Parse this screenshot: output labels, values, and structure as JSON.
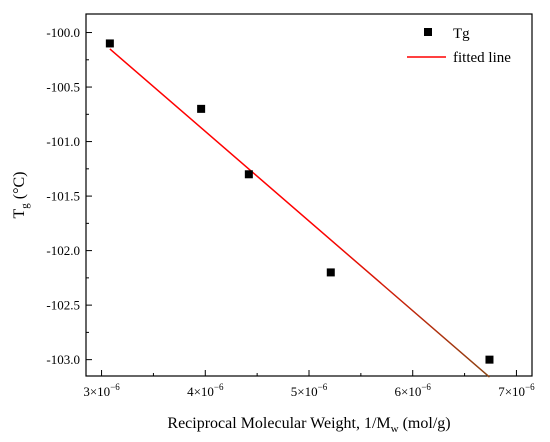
{
  "chart_data": {
    "type": "scatter",
    "xlabel": {
      "main": "Reciprocal Molecular Weight, 1/M",
      "sub": "w",
      "unit": " (mol/g)"
    },
    "ylabel": {
      "main": "T",
      "sub": "g",
      "unit": "  (°C)"
    },
    "xlim": [
      2.85e-06,
      7.15e-06
    ],
    "ylim": [
      -103.15,
      -99.83
    ],
    "x_ticks": [
      {
        "value": 3e-06,
        "mantissa": "3×10",
        "exp": "−6"
      },
      {
        "value": 4e-06,
        "mantissa": "4×10",
        "exp": "−6"
      },
      {
        "value": 5e-06,
        "mantissa": "5×10",
        "exp": "−6"
      },
      {
        "value": 6e-06,
        "mantissa": "6×10",
        "exp": "−6"
      },
      {
        "value": 7e-06,
        "mantissa": "7×10",
        "exp": "−6"
      }
    ],
    "y_ticks": [
      {
        "value": -100.0,
        "label": "-100.0"
      },
      {
        "value": -100.5,
        "label": "-100.5"
      },
      {
        "value": -101.0,
        "label": "-101.0"
      },
      {
        "value": -101.5,
        "label": "-101.5"
      },
      {
        "value": -102.0,
        "label": "-102.0"
      },
      {
        "value": -102.5,
        "label": "-102.5"
      },
      {
        "value": -103.0,
        "label": "-103.0"
      }
    ],
    "series": [
      {
        "name": "Tg",
        "kind": "scatter",
        "marker": "square",
        "color": "#000000",
        "x": [
          3.08e-06,
          3.96e-06,
          4.42e-06,
          5.21e-06,
          6.74e-06
        ],
        "y": [
          -100.1,
          -100.7,
          -101.3,
          -102.2,
          -103.0
        ]
      },
      {
        "name": "fitted line",
        "kind": "line",
        "colors": [
          "#ff0000",
          "#8b4513"
        ],
        "x": [
          3.08e-06,
          6.74e-06
        ],
        "y": [
          -100.15,
          -103.16
        ]
      }
    ],
    "legend_position": "top-right",
    "grid": false
  }
}
